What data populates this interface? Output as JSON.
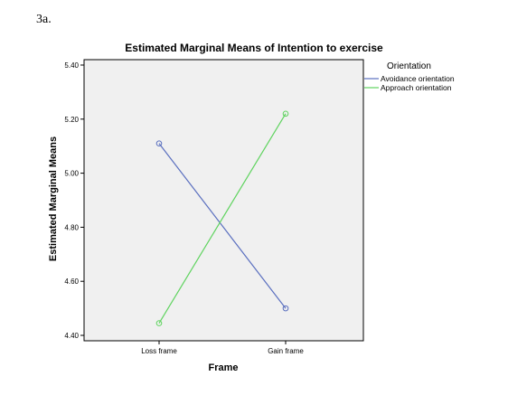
{
  "figure_label": "3a.",
  "chart_data": {
    "type": "line",
    "title": "Estimated Marginal Means of Intention to exercise",
    "xlabel": "Frame",
    "ylabel": "Estimated Marginal Means",
    "categories": [
      "Loss frame",
      "Gain frame"
    ],
    "ylim": [
      4.38,
      5.42
    ],
    "yticks": [
      "4.40",
      "4.60",
      "4.80",
      "5.00",
      "5.20",
      "5.40"
    ],
    "ytick_values": [
      4.4,
      4.6,
      4.8,
      5.0,
      5.2,
      5.4
    ],
    "grid": false,
    "legend_title": "Orientation",
    "legend_position": "right",
    "series": [
      {
        "name": "Avoidance orientation",
        "values": [
          5.11,
          4.5
        ],
        "color": "#5a6fbf"
      },
      {
        "name": "Approach orientation",
        "values": [
          4.445,
          5.22
        ],
        "color": "#5fd35f"
      }
    ],
    "colors": {
      "plot_background": "#f0f0f0",
      "axis": "#000000"
    }
  }
}
